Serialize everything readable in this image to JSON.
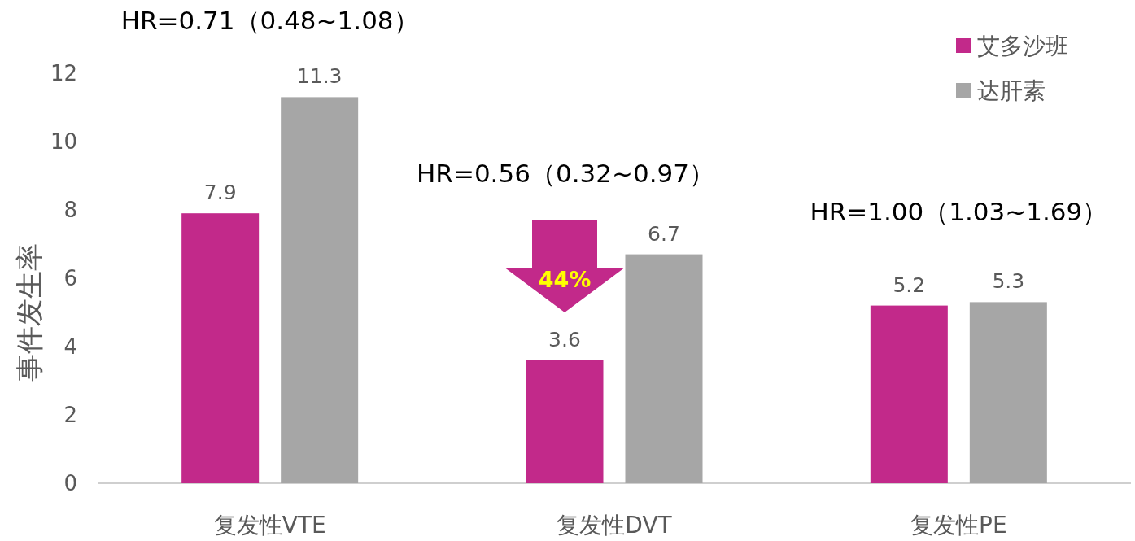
{
  "chart_data": {
    "type": "bar",
    "ylabel": "事件发生率",
    "categories": [
      "复发性VTE",
      "复发性DVT",
      "复发性PE"
    ],
    "series": [
      {
        "name": "艾多沙班",
        "color": "#c2298a",
        "values": [
          7.9,
          3.6,
          5.2
        ]
      },
      {
        "name": "达肝素",
        "color": "#a6a6a6",
        "values": [
          11.3,
          6.7,
          5.3
        ]
      }
    ],
    "ylim": [
      0,
      12
    ],
    "yticks": [
      0,
      2,
      4,
      6,
      8,
      10,
      12
    ],
    "grid": false,
    "legend": "top right",
    "data_labels": true,
    "annotations": [
      "HR=0.71（0.48~1.08）",
      "HR=0.56（0.32~0.97）",
      "HR=1.00（1.03~1.69）",
      "44%"
    ]
  }
}
